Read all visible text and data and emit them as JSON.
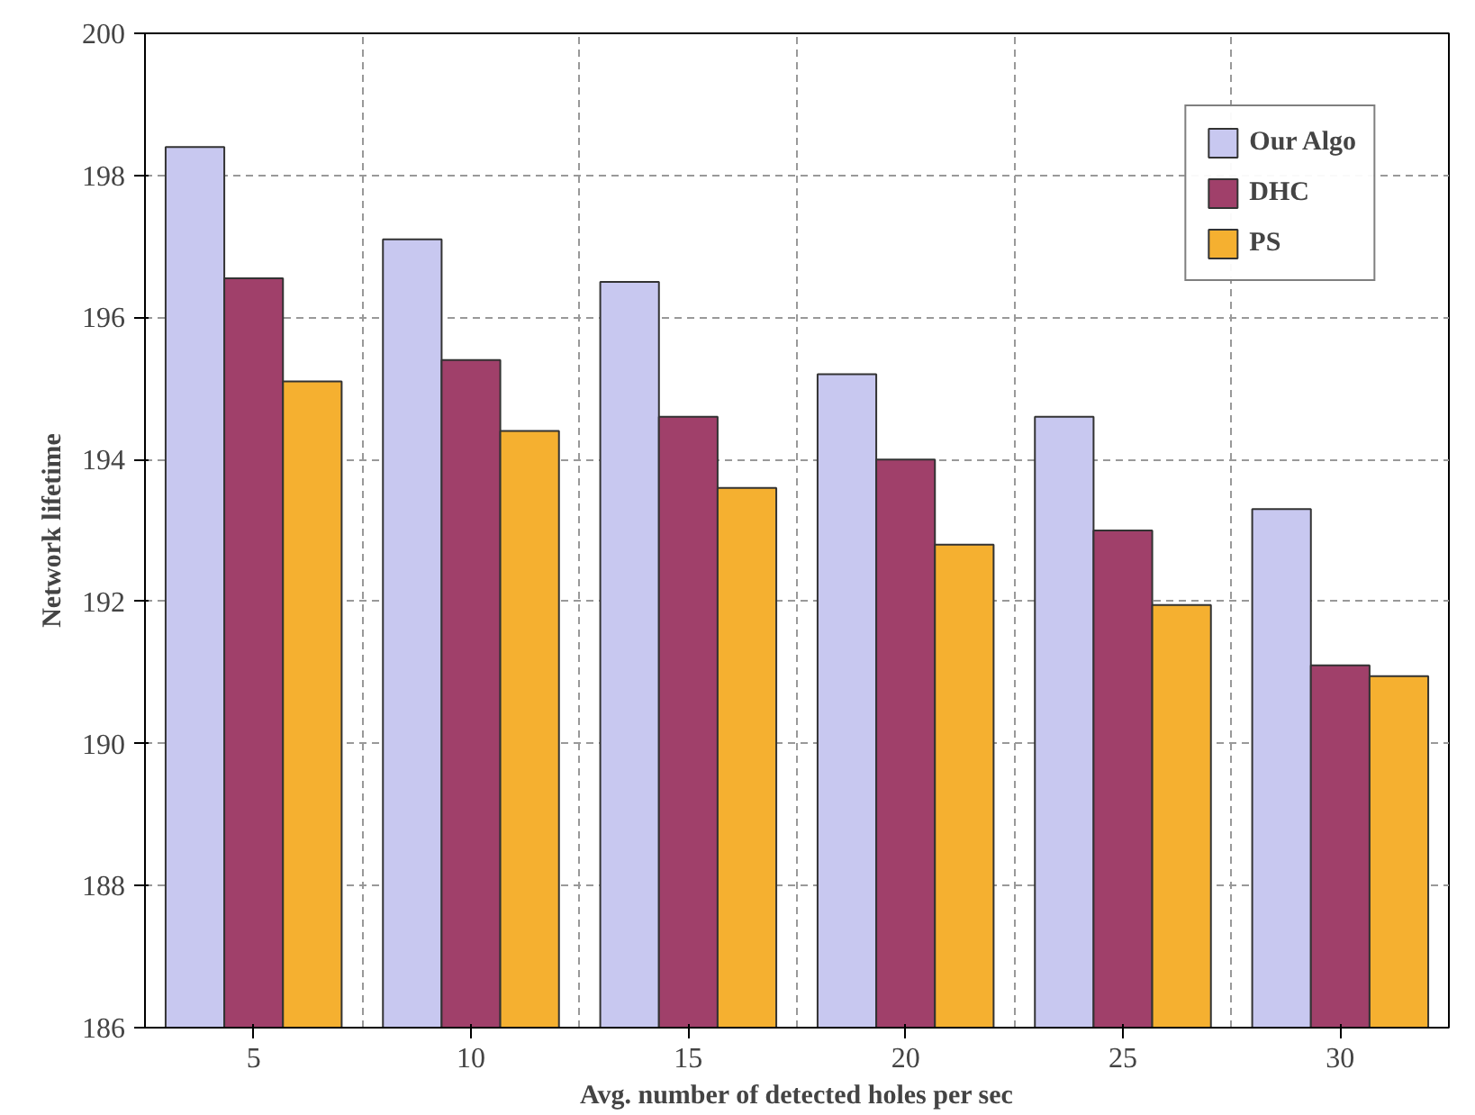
{
  "chart_data": {
    "type": "bar",
    "xlabel": "Avg. number of detected holes per sec",
    "ylabel": "Network lifetime",
    "categories": [
      "5",
      "10",
      "15",
      "20",
      "25",
      "30"
    ],
    "series": [
      {
        "name": "Our Algo",
        "color": "#c8c8f0",
        "values": [
          198.4,
          197.1,
          196.5,
          195.2,
          194.6,
          193.3
        ]
      },
      {
        "name": "DHC",
        "color": "#a0406a",
        "values": [
          196.55,
          195.4,
          194.6,
          194.0,
          193.0,
          191.1
        ]
      },
      {
        "name": "PS",
        "color": "#f5b030",
        "values": [
          195.1,
          194.4,
          193.6,
          192.8,
          191.95,
          190.95
        ]
      }
    ],
    "ylim": [
      186,
      200
    ],
    "yticks": [
      186,
      188,
      190,
      192,
      194,
      196,
      198,
      200
    ],
    "grid": true,
    "legend": "top right"
  }
}
